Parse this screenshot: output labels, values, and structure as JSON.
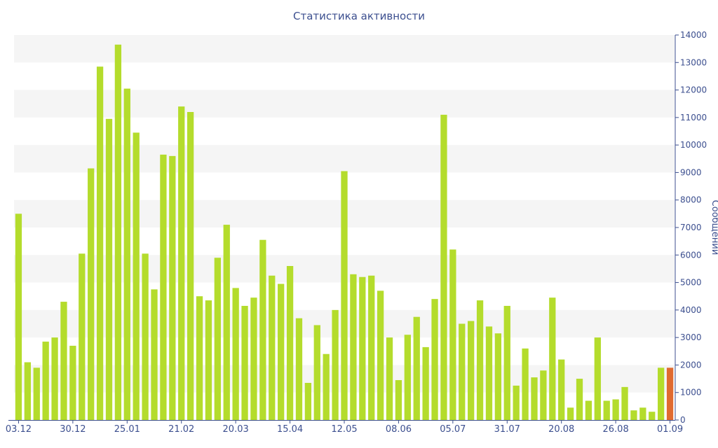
{
  "chart_data": {
    "type": "bar",
    "title": "Статистика активности",
    "ylabel": "Сообщений",
    "xlabel": "",
    "ylim": [
      0,
      14000
    ],
    "y_ticks": [
      0,
      1000,
      2000,
      3000,
      4000,
      5000,
      6000,
      7000,
      8000,
      9000,
      10000,
      11000,
      12000,
      13000,
      14000
    ],
    "y_axis_side": "right",
    "x_ticks": [
      {
        "label": "03.12",
        "index": 0
      },
      {
        "label": "30.12",
        "index": 6
      },
      {
        "label": "25.01",
        "index": 12
      },
      {
        "label": "21.02",
        "index": 18
      },
      {
        "label": "20.03",
        "index": 24
      },
      {
        "label": "15.04",
        "index": 30
      },
      {
        "label": "12.05",
        "index": 36
      },
      {
        "label": "08.06",
        "index": 42
      },
      {
        "label": "05.07",
        "index": 48
      },
      {
        "label": "31.07",
        "index": 54
      },
      {
        "label": "20.08",
        "index": 60
      },
      {
        "label": "26.08",
        "index": 66
      },
      {
        "label": "01.09",
        "index": 72
      }
    ],
    "values": [
      7500,
      2100,
      1900,
      2850,
      3000,
      4300,
      2700,
      6050,
      9150,
      12850,
      10950,
      13650,
      12050,
      10450,
      6050,
      4750,
      9650,
      9600,
      11400,
      11200,
      4500,
      4350,
      5900,
      7100,
      4800,
      4150,
      4450,
      6550,
      5250,
      4950,
      5600,
      3700,
      1350,
      3450,
      2400,
      4000,
      9050,
      5300,
      5200,
      5250,
      4700,
      3000,
      1450,
      3100,
      3750,
      2650,
      4400,
      11100,
      6200,
      3500,
      3600,
      4350,
      3400,
      3150,
      4150,
      1250,
      2600,
      1550,
      1800,
      4450,
      2200,
      450,
      1500,
      700,
      3000,
      700,
      750,
      1200,
      350,
      450,
      300,
      1900,
      1900
    ],
    "highlight_index": 72,
    "grid": true,
    "colors": {
      "bar": "#b4dc2c",
      "bar_highlight": "#e06a30",
      "band": "#f5f5f5",
      "axis": "#3c4f8f",
      "text": "#3c4f8f"
    }
  }
}
